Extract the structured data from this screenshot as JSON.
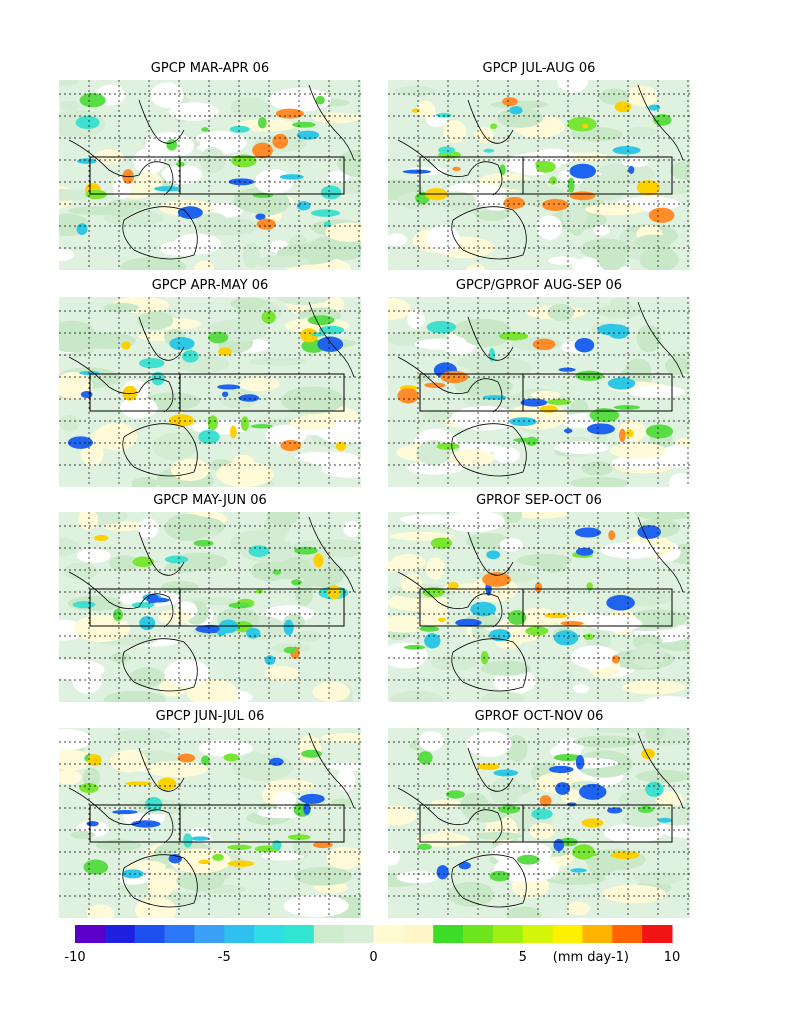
{
  "panels": [
    {
      "title": "GPCP MAR-APR 06"
    },
    {
      "title": "GPCP JUL-AUG 06"
    },
    {
      "title": "GPCP APR-MAY 06"
    },
    {
      "title": "GPCP/GPROF AUG-SEP 06"
    },
    {
      "title": "GPCP MAY-JUN 06"
    },
    {
      "title": "GPROF SEP-OCT 06"
    },
    {
      "title": "GPCP JUN-JUL 06"
    },
    {
      "title": "GPROF OCT-NOV 06"
    }
  ],
  "colorbar": {
    "range": [
      -10,
      10
    ],
    "ticks": [
      -10,
      -5,
      0,
      5,
      10
    ],
    "unit_label": "(mm day-1)",
    "colors": [
      "#5a00c8",
      "#2020e0",
      "#1e50f0",
      "#2a78f5",
      "#3aa0f5",
      "#30c0f0",
      "#30dce6",
      "#30e6d2",
      "#cfeccf",
      "#d6efd6",
      "#fffad2",
      "#fff5c8",
      "#3cdc28",
      "#6ee61e",
      "#a0f014",
      "#d2f50a",
      "#fff000",
      "#ffb400",
      "#ff6400",
      "#f01414"
    ]
  }
}
